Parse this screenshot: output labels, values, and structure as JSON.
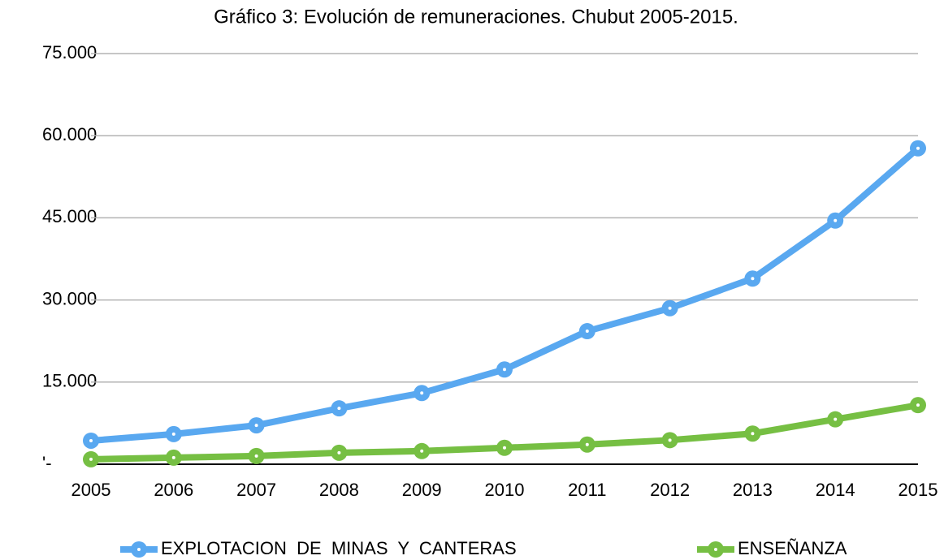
{
  "chart_data": {
    "type": "line",
    "title": "Gráfico 3: Evolución de remuneraciones. Chubut 2005-2015.",
    "categories": [
      "2005",
      "2006",
      "2007",
      "2008",
      "2009",
      "2010",
      "2011",
      "2012",
      "2013",
      "2014",
      "2015"
    ],
    "series": [
      {
        "name": "EXPLOTACION  DE  MINAS  Y  CANTERAS",
        "color": "#59a8f0",
        "values": [
          4300,
          5500,
          7100,
          10200,
          13000,
          17300,
          24300,
          28500,
          33900,
          44500,
          57700
        ]
      },
      {
        "name": "ENSEÑANZA",
        "color": "#76bf43",
        "values": [
          900,
          1200,
          1500,
          2100,
          2400,
          3000,
          3600,
          4400,
          5600,
          8200,
          10800
        ]
      }
    ],
    "ylim": [
      0,
      75000
    ],
    "yticks": [
      {
        "value": 0,
        "label": "'-"
      },
      {
        "value": 15000,
        "label": "15.000"
      },
      {
        "value": 30000,
        "label": "30.000"
      },
      {
        "value": 45000,
        "label": "45.000"
      },
      {
        "value": 60000,
        "label": "60.000"
      },
      {
        "value": 75000,
        "label": "75.000"
      }
    ],
    "grid": true
  }
}
